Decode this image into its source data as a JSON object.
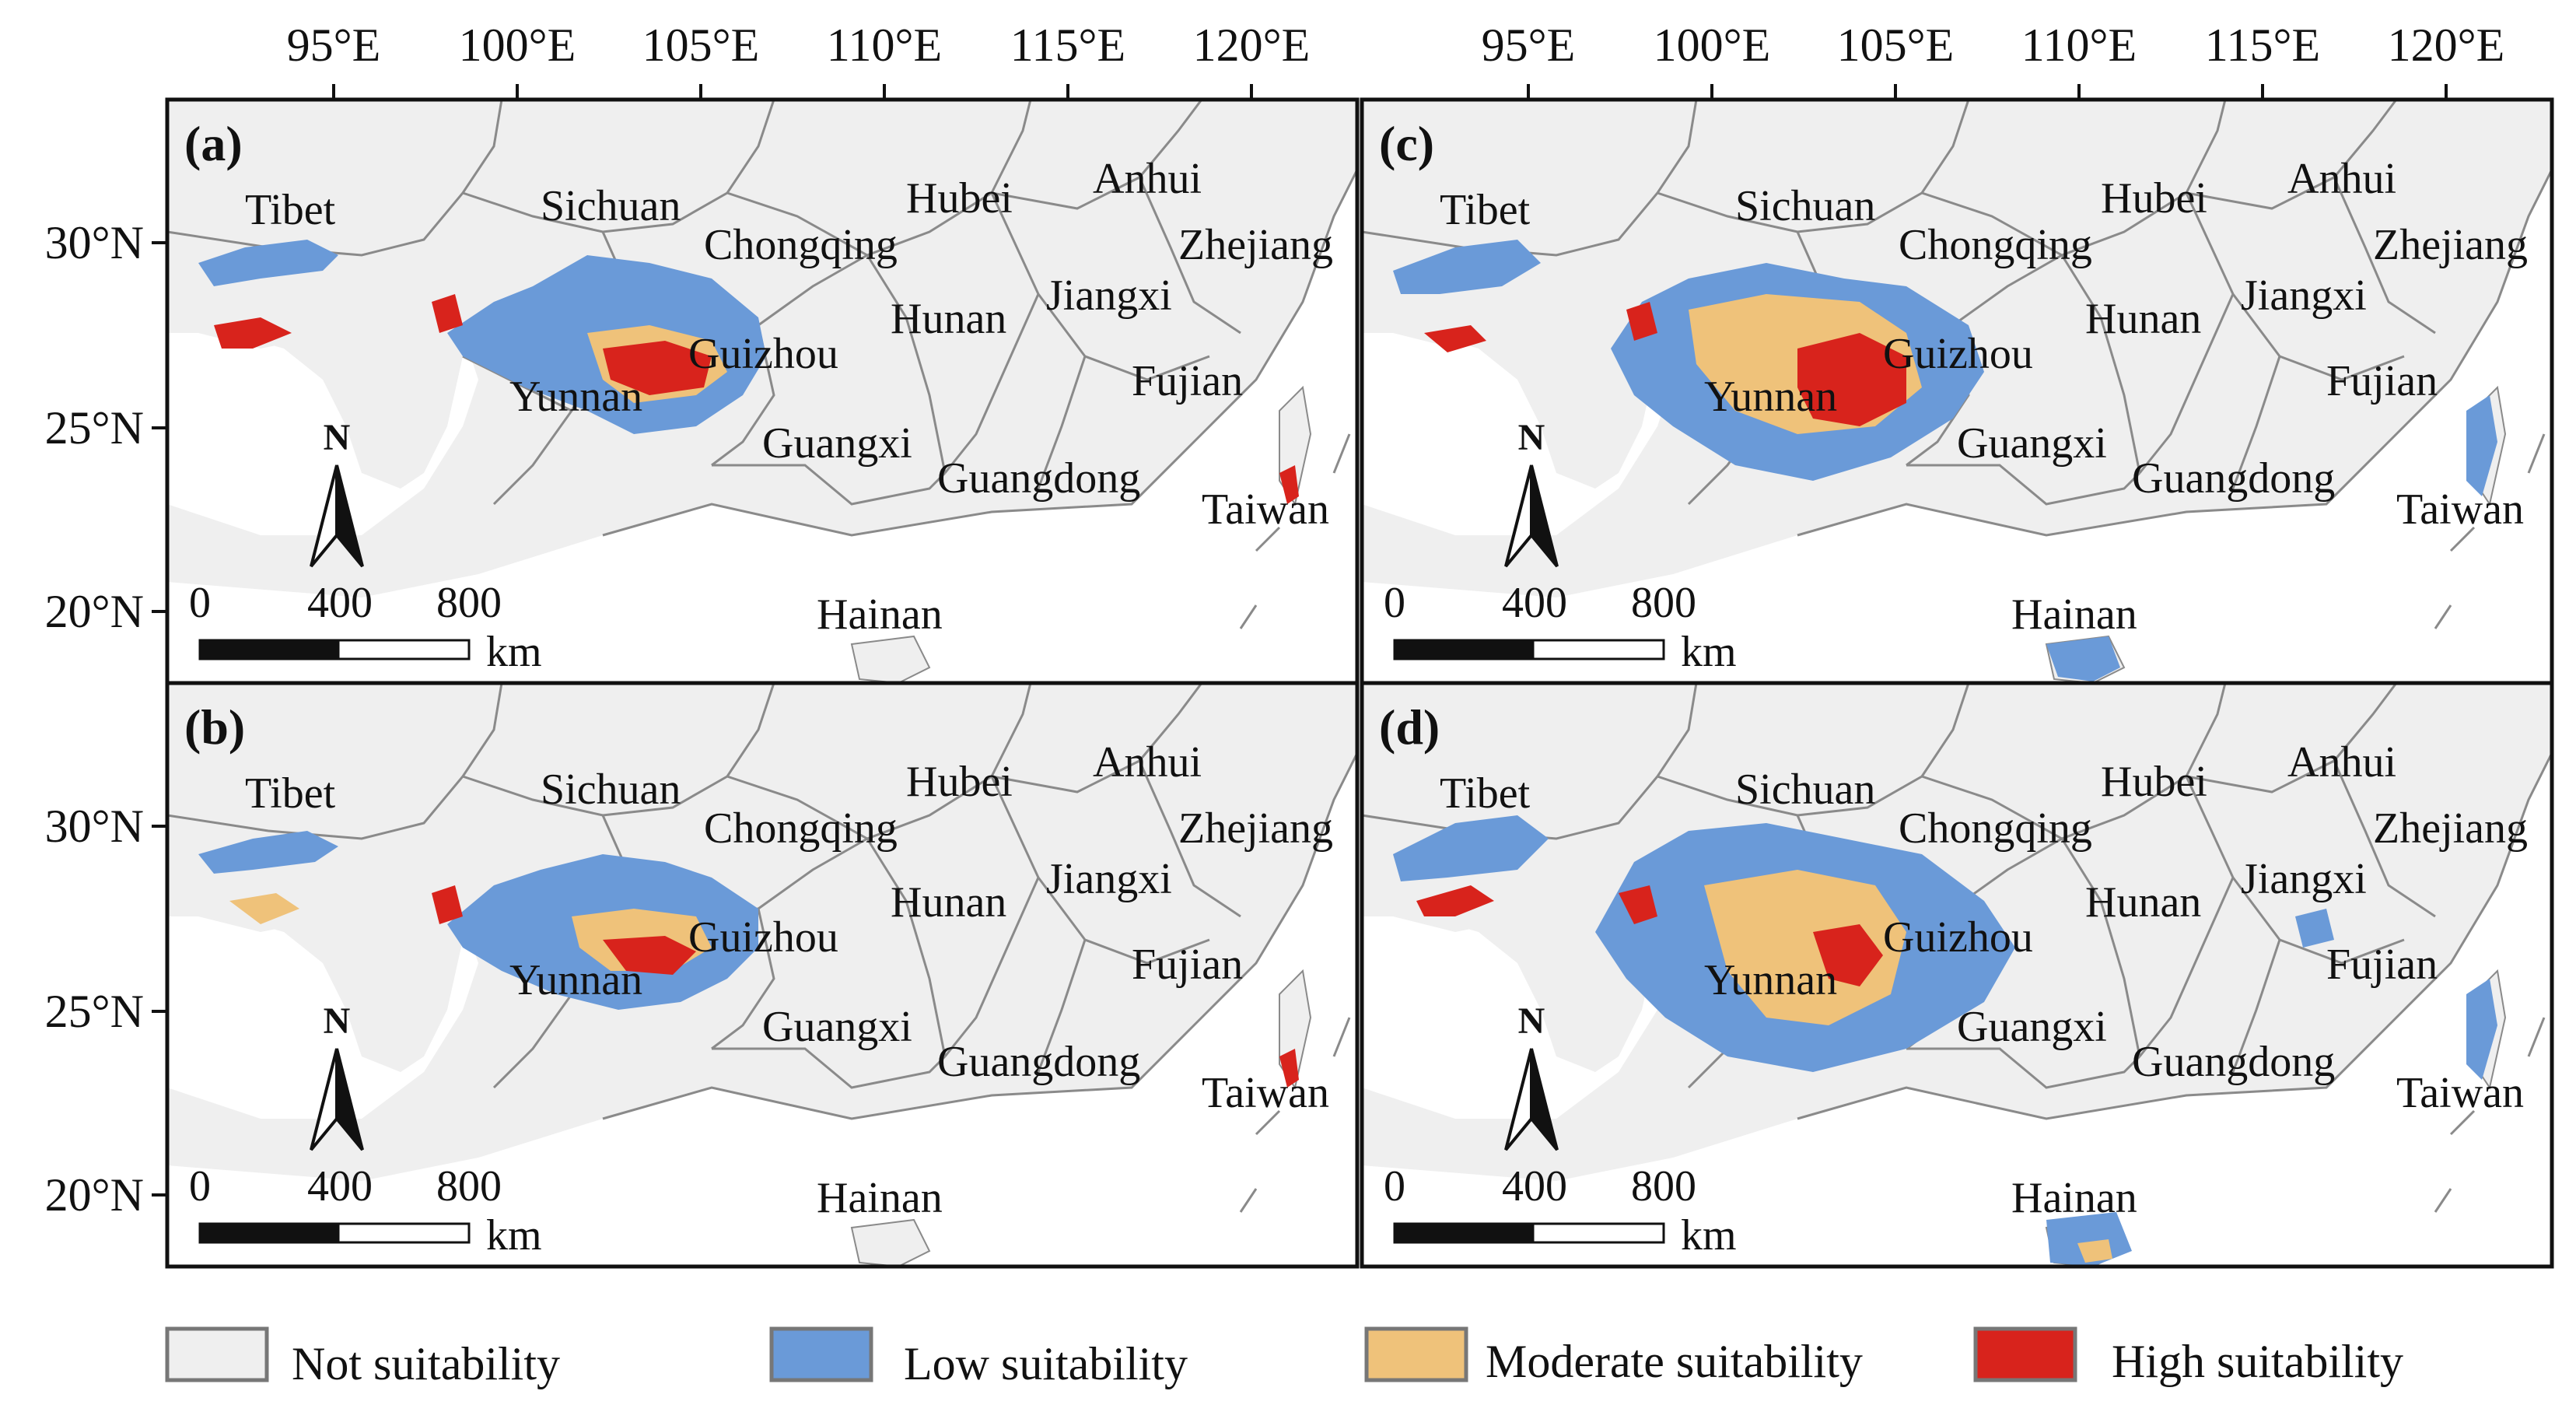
{
  "axes": {
    "lon_ticks": [
      "95°E",
      "100°E",
      "105°E",
      "110°E",
      "115°E",
      "120°E"
    ],
    "lat_ticks": [
      "30°N",
      "25°N",
      "20°N"
    ]
  },
  "panels": [
    {
      "label": "(a)"
    },
    {
      "label": "(b)"
    },
    {
      "label": "(c)"
    },
    {
      "label": "(d)"
    }
  ],
  "provinces": [
    "Tibet",
    "Sichuan",
    "Hubei",
    "Anhui",
    "Chongqing",
    "Zhejiang",
    "Jiangxi",
    "Hunan",
    "Guizhou",
    "Fujian",
    "Yunnan",
    "Guangxi",
    "Guangdong",
    "Taiwan",
    "Hainan"
  ],
  "north_arrow": "N",
  "scale_bar": {
    "ticks": [
      "0",
      "400",
      "800"
    ],
    "unit": "km"
  },
  "legend": [
    {
      "label": "Not suitability",
      "color": "#efefef"
    },
    {
      "label": "Low suitability",
      "color": "#6a9ad8"
    },
    {
      "label": "Moderate suitability",
      "color": "#efc27a"
    },
    {
      "label": "High suitability",
      "color": "#d8231c"
    }
  ]
}
